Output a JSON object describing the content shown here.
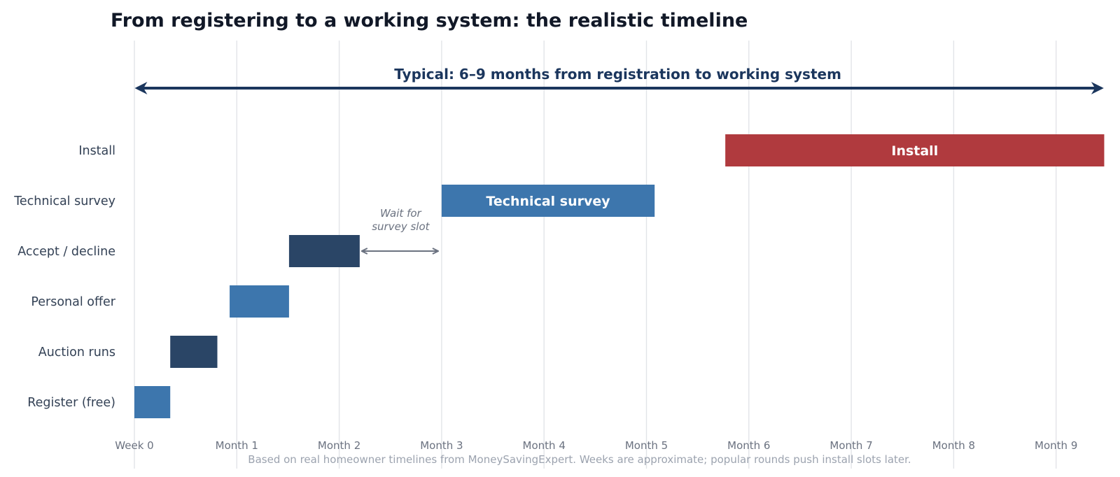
{
  "chart_data": {
    "type": "gantt",
    "title": "From registering to a working system: the realistic timeline",
    "span_annotation": {
      "label": "Typical: 6–9 months from registration to working system",
      "from_month": 0,
      "to_month": 9.4
    },
    "gap_annotation": {
      "line1": "Wait for",
      "line2": "survey slot",
      "row": "Accept / decline",
      "from_month": 2.22,
      "to_month": 2.98
    },
    "x_ticks": [
      "Week 0",
      "Month 1",
      "Month 2",
      "Month 3",
      "Month 4",
      "Month 5",
      "Month 6",
      "Month 7",
      "Month 8",
      "Month 9"
    ],
    "x_range": [
      0,
      9.5
    ],
    "grid": true,
    "rows": [
      "Register (free)",
      "Auction runs",
      "Personal offer",
      "Accept / decline",
      "Technical survey",
      "Install"
    ],
    "tasks": [
      {
        "name": "Register (free)",
        "start": 0,
        "end": 0.35,
        "color": "#3d76ad",
        "label": ""
      },
      {
        "name": "Auction runs",
        "start": 0.35,
        "end": 0.81,
        "color": "#2a4566",
        "label": ""
      },
      {
        "name": "Personal offer",
        "start": 0.93,
        "end": 1.51,
        "color": "#3d76ad",
        "label": ""
      },
      {
        "name": "Accept / decline",
        "start": 1.51,
        "end": 2.2,
        "color": "#2a4566",
        "label": ""
      },
      {
        "name": "Technical survey",
        "start": 3.0,
        "end": 5.08,
        "color": "#3d76ad",
        "label": "Technical survey"
      },
      {
        "name": "Install",
        "start": 5.77,
        "end": 9.47,
        "color": "#b03a3e",
        "label": "Install"
      }
    ],
    "footnote": "Based on real homeowner timelines from MoneySavingExpert. Weeks are approximate; popular rounds push install slots later."
  }
}
